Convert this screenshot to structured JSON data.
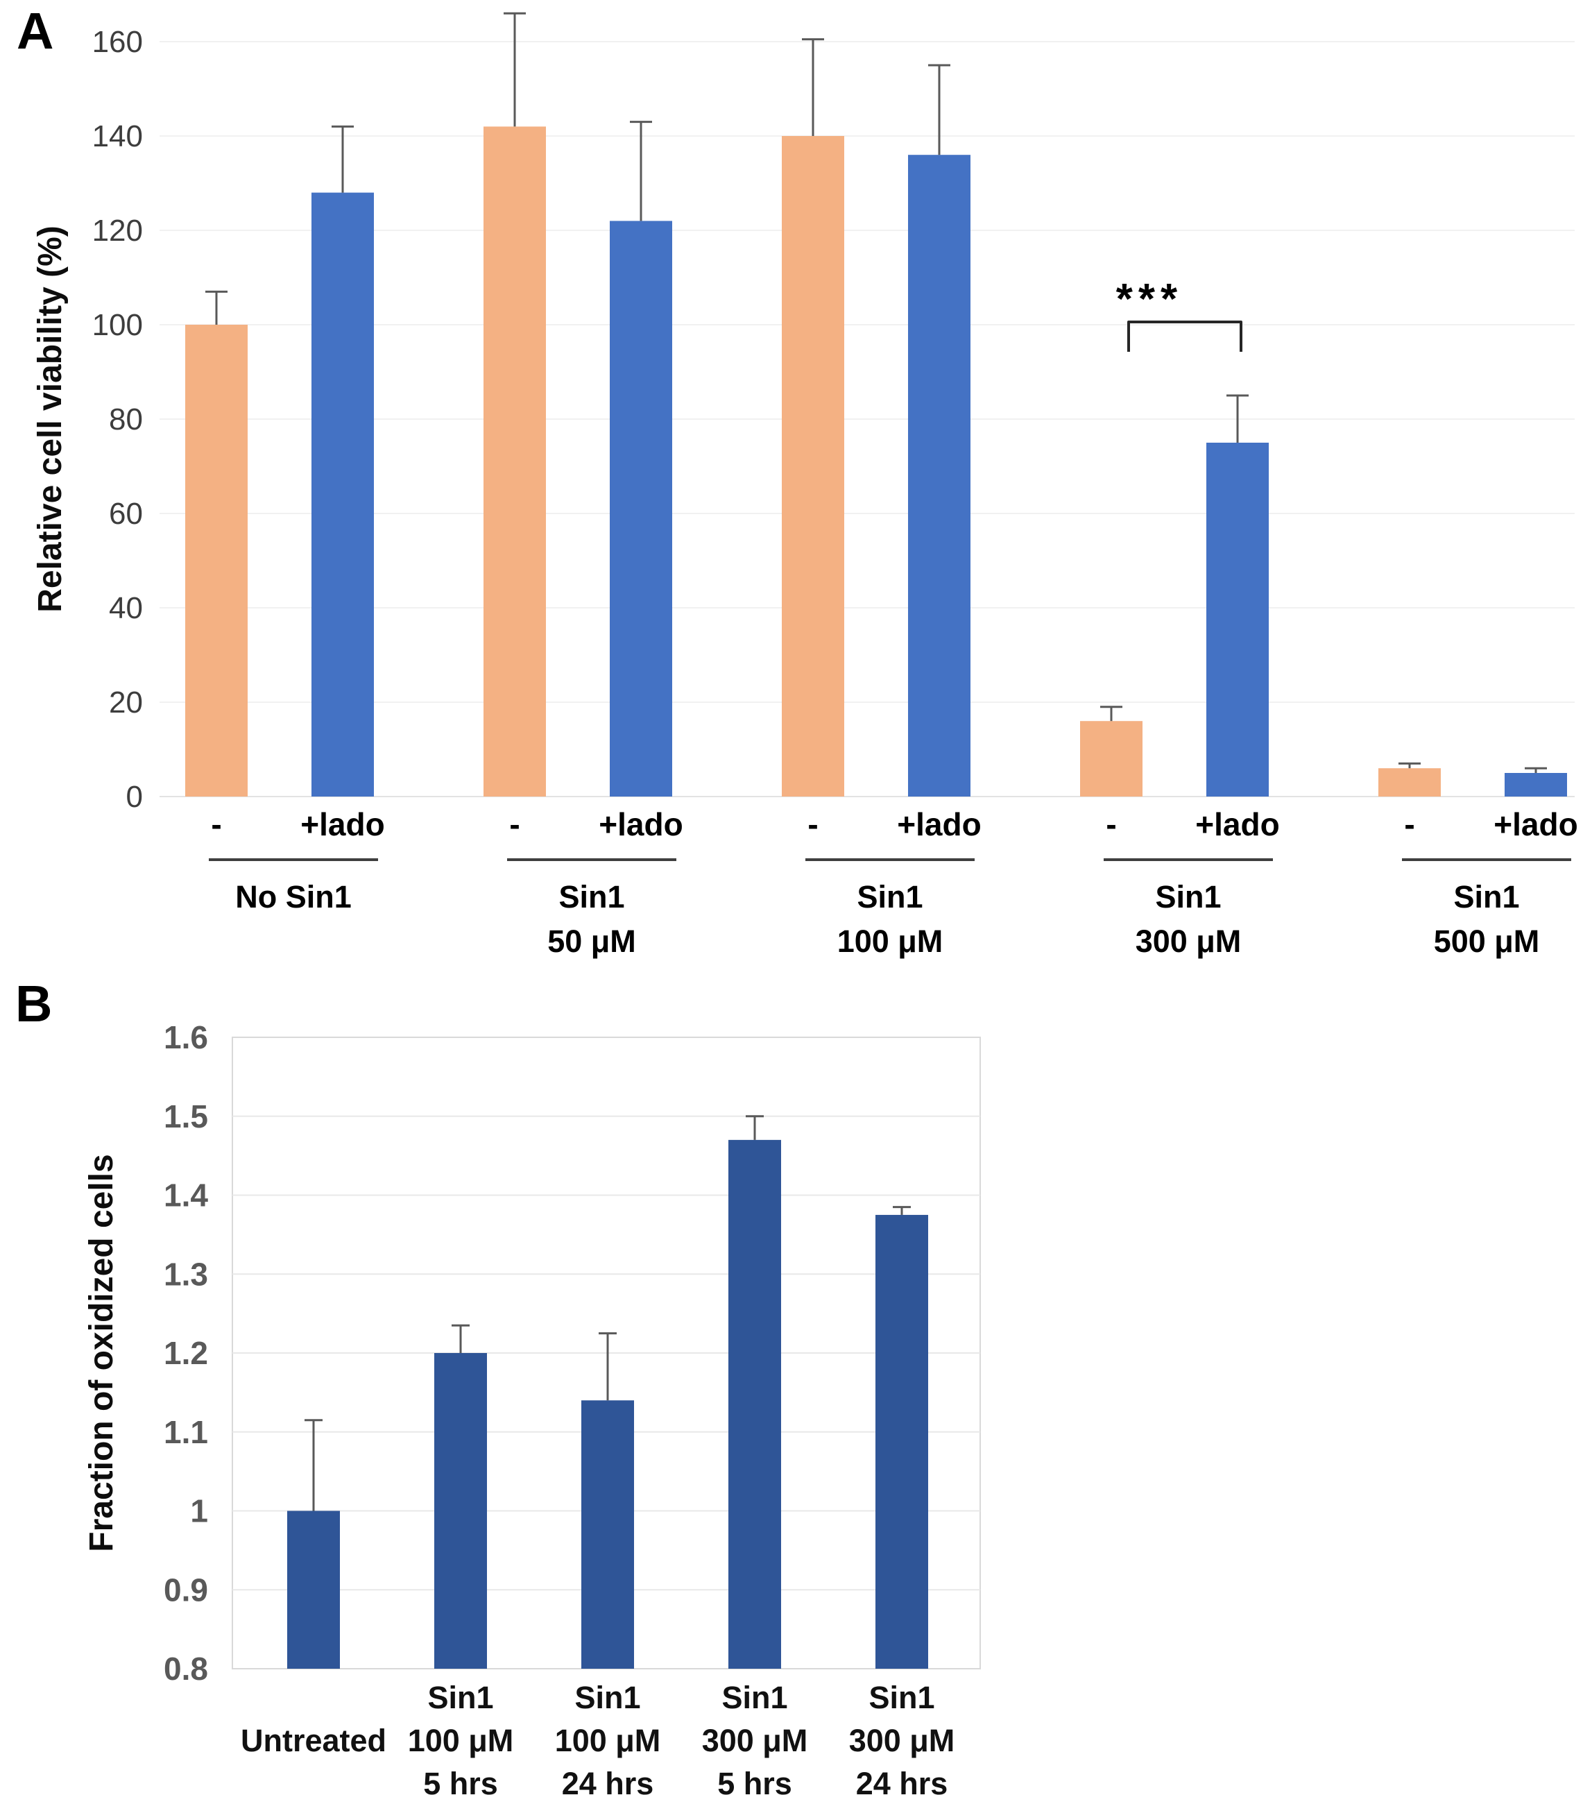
{
  "chart_data": [
    {
      "panel": "A",
      "type": "bar",
      "title": "",
      "ylabel": "Relative cell viability  (%)",
      "ylim": [
        0,
        160
      ],
      "yticks": [
        0,
        20,
        40,
        60,
        80,
        100,
        120,
        140,
        160
      ],
      "grid": true,
      "legend_position": "none",
      "bar_tick_labels": [
        "-",
        "+lado"
      ],
      "group_labels": [
        [
          "No Sin1"
        ],
        [
          "Sin1",
          "50 μM"
        ],
        [
          "Sin1",
          "100 μM"
        ],
        [
          "Sin1",
          "300 μM"
        ],
        [
          "Sin1",
          "500 μM"
        ]
      ],
      "series": [
        {
          "name": "-",
          "color": "#F4B183",
          "values": [
            100,
            142,
            140,
            16,
            6
          ],
          "error_tops": [
            107,
            166,
            160.5,
            19,
            7
          ]
        },
        {
          "name": "+lado",
          "color": "#4472C4",
          "values": [
            128,
            122,
            136,
            75,
            5
          ],
          "error_tops": [
            142,
            143,
            155,
            85,
            6
          ]
        }
      ],
      "error_color": "#595959",
      "significance": {
        "text": "***",
        "group": "Sin1 300 μM",
        "between": [
          "-",
          "+lado"
        ],
        "group_index": 3
      }
    },
    {
      "panel": "B",
      "type": "bar",
      "title": "",
      "ylabel": "Fraction of oxidized cells",
      "ylim": [
        0.8,
        1.6
      ],
      "ytick_labels": [
        "0.8",
        "0.9",
        "1",
        "1.1",
        "1.2",
        "1.3",
        "1.4",
        "1.5",
        "1.6"
      ],
      "grid": true,
      "legend_position": "none",
      "bar_color": "#2F5597",
      "error_color": "#595959",
      "categories": [
        [
          "Untreated"
        ],
        [
          "Sin1",
          "100 μM",
          "5 hrs"
        ],
        [
          "Sin1",
          "100 μM",
          "24 hrs"
        ],
        [
          "Sin1",
          "300 μM",
          "5 hrs"
        ],
        [
          "Sin1",
          "300 μM",
          "24 hrs"
        ]
      ],
      "values": [
        1.0,
        1.2,
        1.14,
        1.47,
        1.375
      ],
      "error_tops": [
        1.115,
        1.235,
        1.225,
        1.5,
        1.385
      ]
    }
  ]
}
